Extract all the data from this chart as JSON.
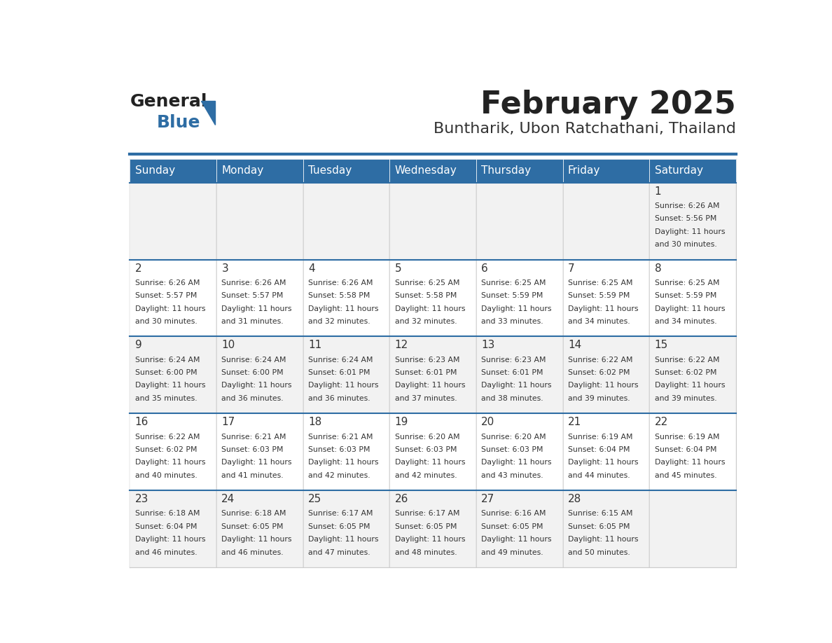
{
  "title": "February 2025",
  "subtitle": "Buntharik, Ubon Ratchathani, Thailand",
  "header_color": "#2E6DA4",
  "header_text_color": "#FFFFFF",
  "cell_bg_color": "#F2F2F2",
  "cell_alt_bg_color": "#FFFFFF",
  "border_color": "#2E6DA4",
  "day_number_color": "#333333",
  "cell_text_color": "#333333",
  "days_of_week": [
    "Sunday",
    "Monday",
    "Tuesday",
    "Wednesday",
    "Thursday",
    "Friday",
    "Saturday"
  ],
  "calendar_data": [
    [
      null,
      null,
      null,
      null,
      null,
      null,
      {
        "day": 1,
        "sunrise": "6:26 AM",
        "sunset": "5:56 PM",
        "daylight": "11 hours and 30 minutes."
      }
    ],
    [
      {
        "day": 2,
        "sunrise": "6:26 AM",
        "sunset": "5:57 PM",
        "daylight": "11 hours and 30 minutes."
      },
      {
        "day": 3,
        "sunrise": "6:26 AM",
        "sunset": "5:57 PM",
        "daylight": "11 hours and 31 minutes."
      },
      {
        "day": 4,
        "sunrise": "6:26 AM",
        "sunset": "5:58 PM",
        "daylight": "11 hours and 32 minutes."
      },
      {
        "day": 5,
        "sunrise": "6:25 AM",
        "sunset": "5:58 PM",
        "daylight": "11 hours and 32 minutes."
      },
      {
        "day": 6,
        "sunrise": "6:25 AM",
        "sunset": "5:59 PM",
        "daylight": "11 hours and 33 minutes."
      },
      {
        "day": 7,
        "sunrise": "6:25 AM",
        "sunset": "5:59 PM",
        "daylight": "11 hours and 34 minutes."
      },
      {
        "day": 8,
        "sunrise": "6:25 AM",
        "sunset": "5:59 PM",
        "daylight": "11 hours and 34 minutes."
      }
    ],
    [
      {
        "day": 9,
        "sunrise": "6:24 AM",
        "sunset": "6:00 PM",
        "daylight": "11 hours and 35 minutes."
      },
      {
        "day": 10,
        "sunrise": "6:24 AM",
        "sunset": "6:00 PM",
        "daylight": "11 hours and 36 minutes."
      },
      {
        "day": 11,
        "sunrise": "6:24 AM",
        "sunset": "6:01 PM",
        "daylight": "11 hours and 36 minutes."
      },
      {
        "day": 12,
        "sunrise": "6:23 AM",
        "sunset": "6:01 PM",
        "daylight": "11 hours and 37 minutes."
      },
      {
        "day": 13,
        "sunrise": "6:23 AM",
        "sunset": "6:01 PM",
        "daylight": "11 hours and 38 minutes."
      },
      {
        "day": 14,
        "sunrise": "6:22 AM",
        "sunset": "6:02 PM",
        "daylight": "11 hours and 39 minutes."
      },
      {
        "day": 15,
        "sunrise": "6:22 AM",
        "sunset": "6:02 PM",
        "daylight": "11 hours and 39 minutes."
      }
    ],
    [
      {
        "day": 16,
        "sunrise": "6:22 AM",
        "sunset": "6:02 PM",
        "daylight": "11 hours and 40 minutes."
      },
      {
        "day": 17,
        "sunrise": "6:21 AM",
        "sunset": "6:03 PM",
        "daylight": "11 hours and 41 minutes."
      },
      {
        "day": 18,
        "sunrise": "6:21 AM",
        "sunset": "6:03 PM",
        "daylight": "11 hours and 42 minutes."
      },
      {
        "day": 19,
        "sunrise": "6:20 AM",
        "sunset": "6:03 PM",
        "daylight": "11 hours and 42 minutes."
      },
      {
        "day": 20,
        "sunrise": "6:20 AM",
        "sunset": "6:03 PM",
        "daylight": "11 hours and 43 minutes."
      },
      {
        "day": 21,
        "sunrise": "6:19 AM",
        "sunset": "6:04 PM",
        "daylight": "11 hours and 44 minutes."
      },
      {
        "day": 22,
        "sunrise": "6:19 AM",
        "sunset": "6:04 PM",
        "daylight": "11 hours and 45 minutes."
      }
    ],
    [
      {
        "day": 23,
        "sunrise": "6:18 AM",
        "sunset": "6:04 PM",
        "daylight": "11 hours and 46 minutes."
      },
      {
        "day": 24,
        "sunrise": "6:18 AM",
        "sunset": "6:05 PM",
        "daylight": "11 hours and 46 minutes."
      },
      {
        "day": 25,
        "sunrise": "6:17 AM",
        "sunset": "6:05 PM",
        "daylight": "11 hours and 47 minutes."
      },
      {
        "day": 26,
        "sunrise": "6:17 AM",
        "sunset": "6:05 PM",
        "daylight": "11 hours and 48 minutes."
      },
      {
        "day": 27,
        "sunrise": "6:16 AM",
        "sunset": "6:05 PM",
        "daylight": "11 hours and 49 minutes."
      },
      {
        "day": 28,
        "sunrise": "6:15 AM",
        "sunset": "6:05 PM",
        "daylight": "11 hours and 50 minutes."
      },
      null
    ]
  ],
  "logo_general_color": "#222222",
  "logo_blue_color": "#2E6DA4",
  "separator_color": "#2E6DA4",
  "cell_border_color": "#CCCCCC"
}
